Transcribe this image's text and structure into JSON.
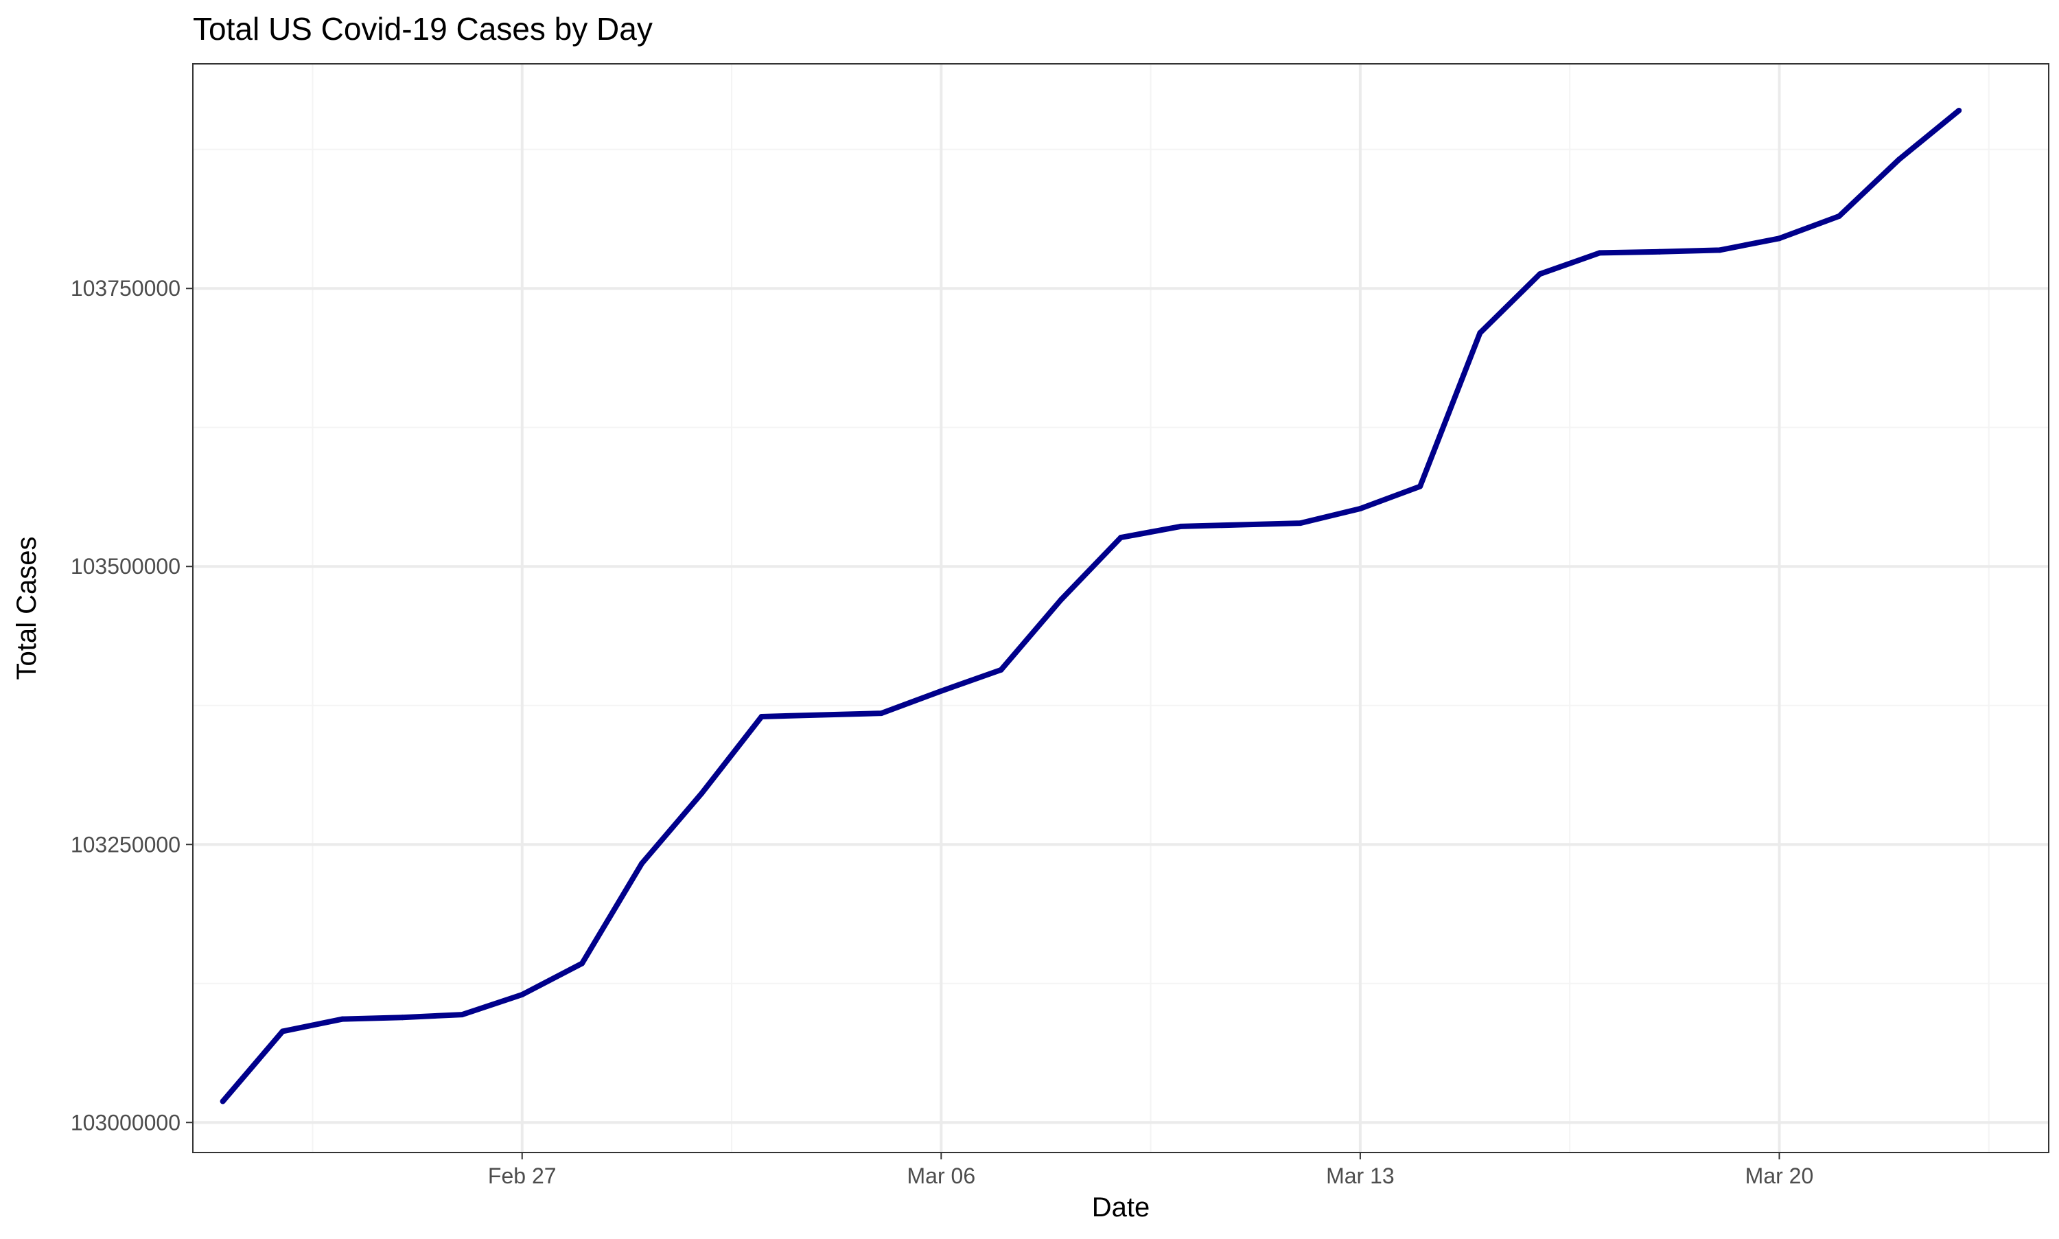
{
  "chart_data": {
    "type": "line",
    "title": "Total US Covid-19 Cases by Day",
    "xlabel": "Date",
    "ylabel": "Total Cases",
    "x": [
      "2023-02-22",
      "2023-02-23",
      "2023-02-24",
      "2023-02-25",
      "2023-02-26",
      "2023-02-27",
      "2023-02-28",
      "2023-03-01",
      "2023-03-02",
      "2023-03-03",
      "2023-03-04",
      "2023-03-05",
      "2023-03-06",
      "2023-03-07",
      "2023-03-08",
      "2023-03-09",
      "2023-03-10",
      "2023-03-11",
      "2023-03-12",
      "2023-03-13",
      "2023-03-14",
      "2023-03-15",
      "2023-03-16",
      "2023-03-17",
      "2023-03-18",
      "2023-03-19",
      "2023-03-20",
      "2023-03-21",
      "2023-03-22",
      "2023-03-23"
    ],
    "series": [
      {
        "values": [
          103019000,
          103082000,
          103093000,
          103094500,
          103097000,
          103115000,
          103143000,
          103233000,
          103296000,
          103365000,
          103366500,
          103368000,
          103388000,
          103407000,
          103470000,
          103526000,
          103536000,
          103537500,
          103539000,
          103552000,
          103572000,
          103710000,
          103763000,
          103782000,
          103783000,
          103784500,
          103795000,
          103815000,
          103866000,
          103910000
        ],
        "color": "#00008B"
      }
    ],
    "xticks": [
      {
        "value": "2023-02-27",
        "label": "Feb 27"
      },
      {
        "value": "2023-03-06",
        "label": "Mar 06"
      },
      {
        "value": "2023-03-13",
        "label": "Mar 13"
      },
      {
        "value": "2023-03-20",
        "label": "Mar 20"
      }
    ],
    "yticks": [
      {
        "value": 103000000,
        "label": "103000000"
      },
      {
        "value": 103250000,
        "label": "103250000"
      },
      {
        "value": 103500000,
        "label": "103500000"
      },
      {
        "value": 103750000,
        "label": "103750000"
      }
    ],
    "xlim": [
      "2023-02-21.5",
      "2023-03-24.5"
    ],
    "ylim": [
      102973000,
      103952000
    ],
    "grid": true,
    "colors": {
      "line": "#00008B",
      "grid_major": "#EBEBEB",
      "grid_minor": "#F4F4F4",
      "panel_border": "#333333"
    }
  }
}
